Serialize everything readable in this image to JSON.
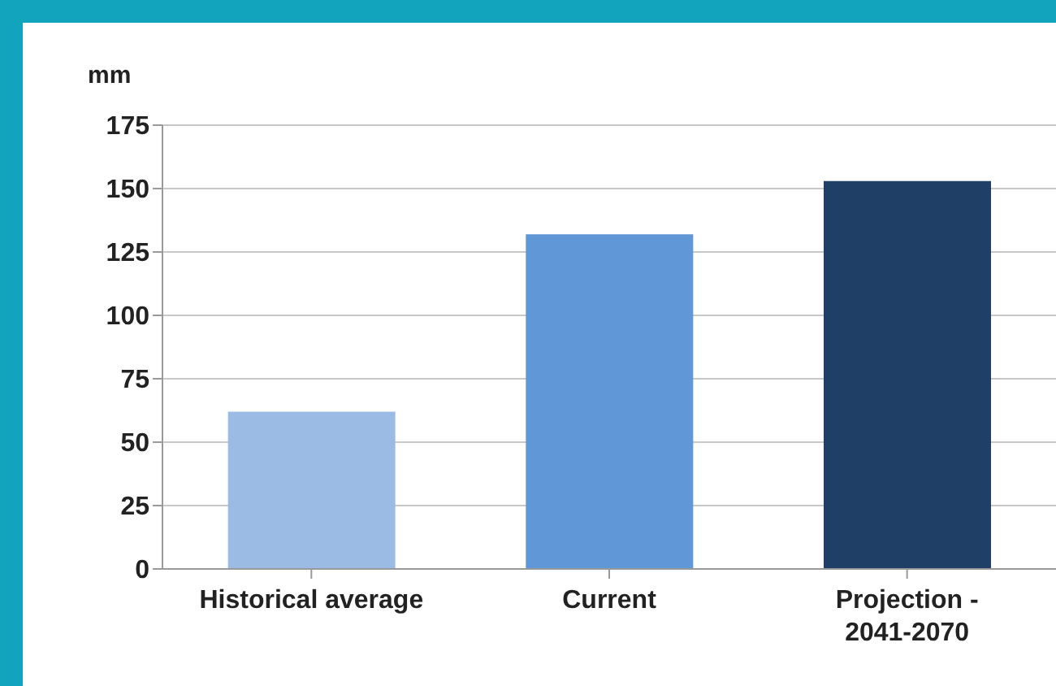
{
  "chart_data": {
    "type": "bar",
    "ylabel": "mm",
    "categories": [
      "Historical average",
      "Current",
      "Projection - 2041-2070"
    ],
    "values": [
      62,
      132,
      153
    ],
    "colors": [
      "#9bbbe5",
      "#6097d6",
      "#1f3f66"
    ],
    "ylim": [
      0,
      175
    ],
    "yticks": [
      0,
      25,
      50,
      75,
      100,
      125,
      150,
      175
    ],
    "grid": "y"
  }
}
